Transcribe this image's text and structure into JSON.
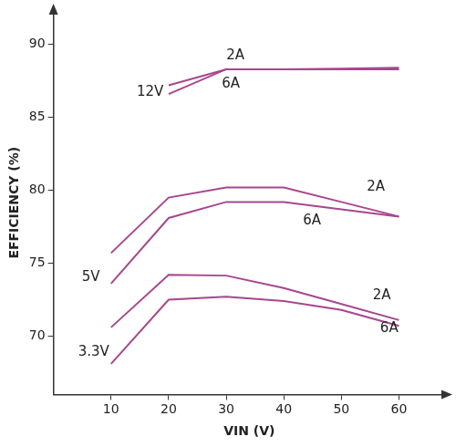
{
  "chart_data": {
    "type": "line",
    "x_label": "VIN (V)",
    "y_label": "EFFICIENCY (%)",
    "x": [
      10,
      20,
      30,
      40,
      50,
      60
    ],
    "series": [
      {
        "values": [
          null,
          87.2,
          88.3,
          88.3,
          88.3,
          88.3
        ]
      },
      {
        "values": [
          null,
          86.6,
          88.3,
          88.3,
          88.35,
          88.4
        ]
      },
      {
        "values": [
          75.7,
          79.5,
          80.2,
          80.2,
          79.2,
          78.2
        ]
      },
      {
        "values": [
          73.6,
          78.1,
          79.2,
          79.2,
          78.7,
          78.2
        ]
      },
      {
        "values": [
          70.6,
          74.2,
          74.15,
          73.3,
          72.2,
          71.1
        ]
      },
      {
        "values": [
          68.1,
          72.5,
          72.7,
          72.4,
          71.8,
          70.7
        ]
      }
    ],
    "color": "#a8468f",
    "xlim": [
      0,
      68
    ],
    "xticks": [
      10,
      20,
      30,
      40,
      50,
      60
    ],
    "ylim": [
      66,
      92.3
    ],
    "yticks": [
      70,
      75,
      80,
      85,
      90
    ],
    "grid": false,
    "annotations": [
      {
        "text": "2A",
        "x": 31.6,
        "y": 89.2
      },
      {
        "text": "6A",
        "x": 30.8,
        "y": 87.3
      },
      {
        "text": "12V",
        "x": 16.8,
        "y": 86.7
      },
      {
        "text": "2A",
        "x": 56,
        "y": 80.25
      },
      {
        "text": "6A",
        "x": 44.9,
        "y": 77.9
      },
      {
        "text": "5V",
        "x": 6.5,
        "y": 74
      },
      {
        "text": "2A",
        "x": 57,
        "y": 72.75
      },
      {
        "text": "6A",
        "x": 58.3,
        "y": 70.5
      },
      {
        "text": "3.3V",
        "x": 7,
        "y": 68.9
      }
    ]
  }
}
